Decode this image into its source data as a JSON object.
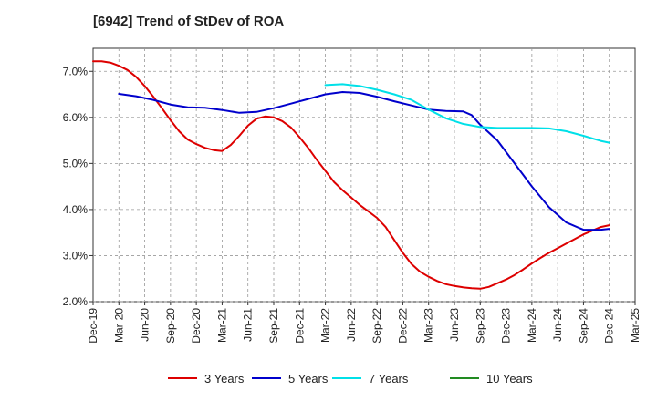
{
  "chart_data": {
    "type": "line",
    "title": "[6942]  Trend of StDev of ROA",
    "xlabel": "",
    "ylabel": "",
    "x_ticks": [
      "Dec-19",
      "Mar-20",
      "Jun-20",
      "Sep-20",
      "Dec-20",
      "Mar-21",
      "Jun-21",
      "Sep-21",
      "Dec-21",
      "Mar-22",
      "Jun-22",
      "Sep-22",
      "Dec-22",
      "Mar-23",
      "Jun-23",
      "Sep-23",
      "Dec-23",
      "Mar-24",
      "Jun-24",
      "Sep-24",
      "Dec-24",
      "Mar-25"
    ],
    "y_ticks": [
      "2.0%",
      "3.0%",
      "4.0%",
      "5.0%",
      "6.0%",
      "7.0%"
    ],
    "ylim": [
      2.0,
      7.5
    ],
    "y_unit": "%",
    "grid": "dashed, both axes",
    "legend_position": "bottom-center",
    "series": [
      {
        "name": "3 Years",
        "color": "#dd0000",
        "points": [
          [
            "Dec-19",
            7.22
          ],
          [
            "Jan-20",
            7.22
          ],
          [
            "Feb-20",
            7.19
          ],
          [
            "Mar-20",
            7.12
          ],
          [
            "Apr-20",
            7.03
          ],
          [
            "May-20",
            6.88
          ],
          [
            "Jun-20",
            6.68
          ],
          [
            "Jul-20",
            6.45
          ],
          [
            "Aug-20",
            6.2
          ],
          [
            "Sep-20",
            5.94
          ],
          [
            "Oct-20",
            5.7
          ],
          [
            "Nov-20",
            5.52
          ],
          [
            "Dec-20",
            5.42
          ],
          [
            "Jan-21",
            5.34
          ],
          [
            "Feb-21",
            5.29
          ],
          [
            "Mar-21",
            5.27
          ],
          [
            "Apr-21",
            5.4
          ],
          [
            "May-21",
            5.6
          ],
          [
            "Jun-21",
            5.82
          ],
          [
            "Jul-21",
            5.97
          ],
          [
            "Aug-21",
            6.02
          ],
          [
            "Sep-21",
            6.0
          ],
          [
            "Oct-21",
            5.92
          ],
          [
            "Nov-21",
            5.78
          ],
          [
            "Dec-21",
            5.57
          ],
          [
            "Jan-22",
            5.34
          ],
          [
            "Feb-22",
            5.08
          ],
          [
            "Mar-22",
            4.84
          ],
          [
            "Apr-22",
            4.6
          ],
          [
            "May-22",
            4.42
          ],
          [
            "Jun-22",
            4.26
          ],
          [
            "Jul-22",
            4.1
          ],
          [
            "Aug-22",
            3.96
          ],
          [
            "Sep-22",
            3.82
          ],
          [
            "Oct-22",
            3.62
          ],
          [
            "Nov-22",
            3.34
          ],
          [
            "Dec-22",
            3.06
          ],
          [
            "Jan-23",
            2.82
          ],
          [
            "Feb-23",
            2.65
          ],
          [
            "Mar-23",
            2.54
          ],
          [
            "Apr-23",
            2.45
          ],
          [
            "May-23",
            2.38
          ],
          [
            "Jun-23",
            2.34
          ],
          [
            "Jul-23",
            2.31
          ],
          [
            "Aug-23",
            2.29
          ],
          [
            "Sep-23",
            2.28
          ],
          [
            "Oct-23",
            2.32
          ],
          [
            "Nov-23",
            2.4
          ],
          [
            "Dec-23",
            2.48
          ],
          [
            "Jan-24",
            2.58
          ],
          [
            "Feb-24",
            2.7
          ],
          [
            "Mar-24",
            2.83
          ],
          [
            "Apr-24",
            2.95
          ],
          [
            "May-24",
            3.06
          ],
          [
            "Jun-24",
            3.16
          ],
          [
            "Jul-24",
            3.26
          ],
          [
            "Aug-24",
            3.36
          ],
          [
            "Sep-24",
            3.46
          ],
          [
            "Oct-24",
            3.54
          ],
          [
            "Nov-24",
            3.62
          ],
          [
            "Dec-24",
            3.66
          ]
        ]
      },
      {
        "name": "5 Years",
        "color": "#0000cc",
        "points": [
          [
            "Mar-20",
            6.51
          ],
          [
            "May-20",
            6.46
          ],
          [
            "Jul-20",
            6.38
          ],
          [
            "Sep-20",
            6.28
          ],
          [
            "Nov-20",
            6.22
          ],
          [
            "Jan-21",
            6.21
          ],
          [
            "Mar-21",
            6.16
          ],
          [
            "May-21",
            6.1
          ],
          [
            "Jul-21",
            6.12
          ],
          [
            "Sep-21",
            6.2
          ],
          [
            "Nov-21",
            6.3
          ],
          [
            "Jan-22",
            6.4
          ],
          [
            "Mar-22",
            6.5
          ],
          [
            "May-22",
            6.55
          ],
          [
            "Jul-22",
            6.53
          ],
          [
            "Sep-22",
            6.45
          ],
          [
            "Nov-22",
            6.35
          ],
          [
            "Jan-23",
            6.26
          ],
          [
            "Mar-23",
            6.17
          ],
          [
            "May-23",
            6.14
          ],
          [
            "Jul-23",
            6.13
          ],
          [
            "Aug-23",
            6.05
          ],
          [
            "Sep-23",
            5.84
          ],
          [
            "Nov-23",
            5.5
          ],
          [
            "Jan-24",
            5.0
          ],
          [
            "Mar-24",
            4.5
          ],
          [
            "May-24",
            4.05
          ],
          [
            "Jul-24",
            3.72
          ],
          [
            "Sep-24",
            3.56
          ],
          [
            "Nov-24",
            3.56
          ],
          [
            "Dec-24",
            3.58
          ]
        ]
      },
      {
        "name": "7 Years",
        "color": "#00e0e8",
        "points": [
          [
            "Mar-22",
            6.7
          ],
          [
            "May-22",
            6.72
          ],
          [
            "Jul-22",
            6.68
          ],
          [
            "Sep-22",
            6.6
          ],
          [
            "Nov-22",
            6.5
          ],
          [
            "Jan-23",
            6.38
          ],
          [
            "Mar-23",
            6.17
          ],
          [
            "May-23",
            5.98
          ],
          [
            "Jul-23",
            5.86
          ],
          [
            "Sep-23",
            5.79
          ],
          [
            "Nov-23",
            5.77
          ],
          [
            "Jan-24",
            5.77
          ],
          [
            "Mar-24",
            5.77
          ],
          [
            "May-24",
            5.76
          ],
          [
            "Jul-24",
            5.7
          ],
          [
            "Sep-24",
            5.6
          ],
          [
            "Nov-24",
            5.49
          ],
          [
            "Dec-24",
            5.45
          ]
        ]
      },
      {
        "name": "10 Years",
        "color": "#228b22",
        "points": []
      }
    ]
  }
}
